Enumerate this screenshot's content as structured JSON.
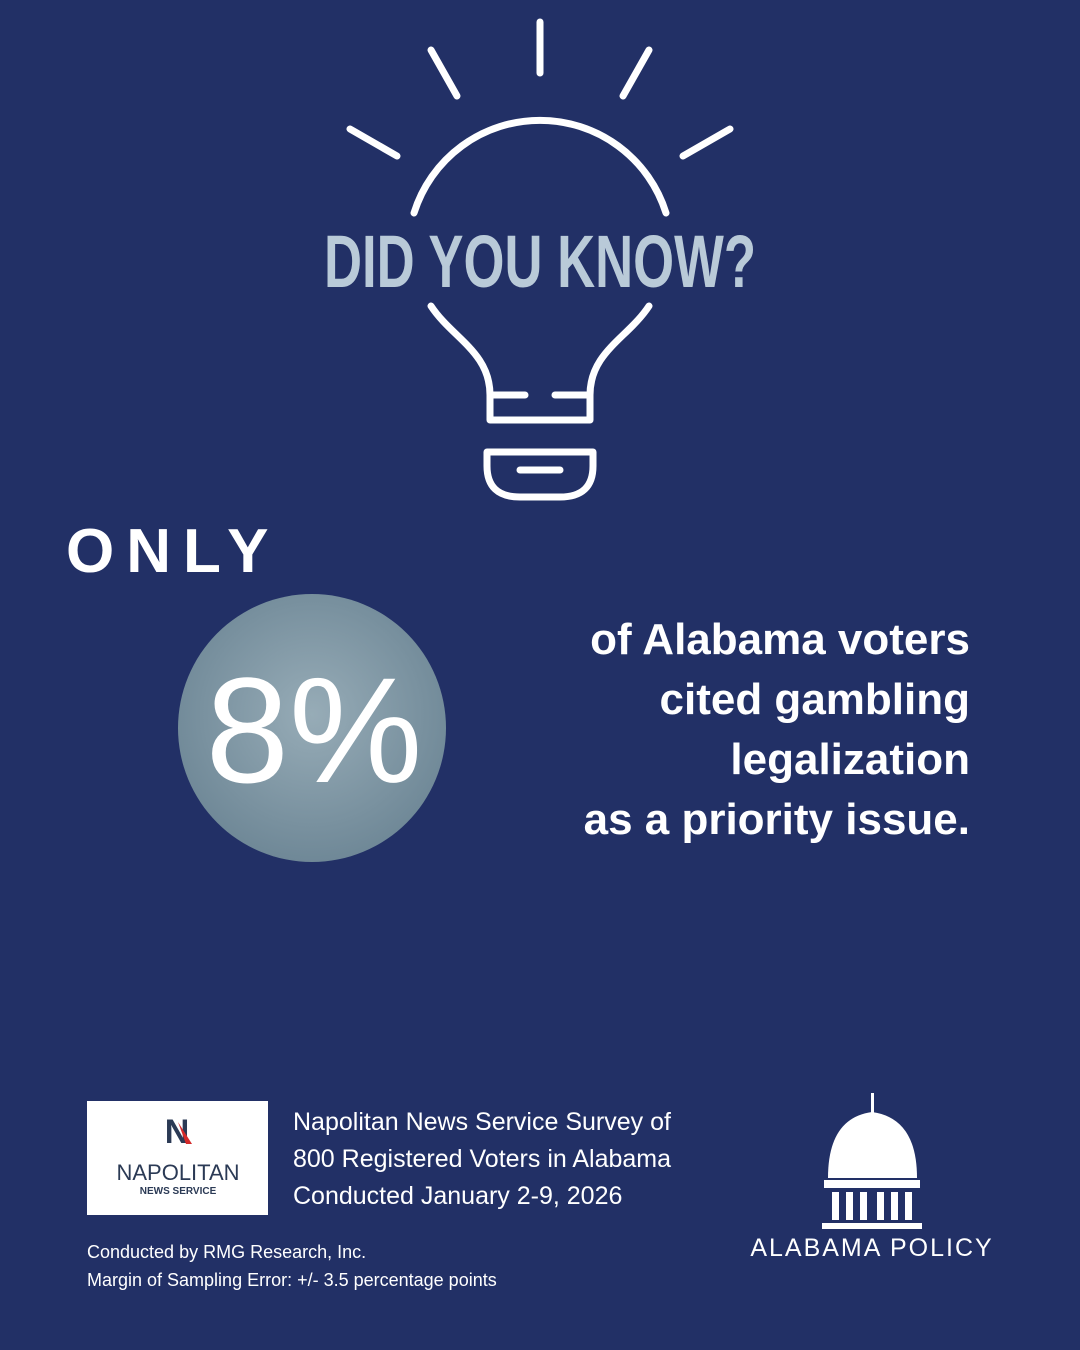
{
  "header": {
    "title": "DID YOU KNOW?"
  },
  "highlight": {
    "lead": "ONLY",
    "figure": "8%",
    "statement": [
      "of Alabama voters",
      "cited gambling",
      "legalization",
      "as a priority issue."
    ]
  },
  "source": {
    "logo": {
      "letter": "N",
      "name": "NAPOLITAN",
      "sub": "NEWS SERVICE"
    },
    "lines": [
      "Napolitan News Service Survey of",
      "800 Registered Voters in Alabama",
      "Conducted January 2-9, 2026"
    ],
    "notes": [
      "Conducted by RMG Research, Inc.",
      "Margin of Sampling Error: +/- 3.5 percentage points"
    ]
  },
  "brand": "ALABAMA POLICY"
}
